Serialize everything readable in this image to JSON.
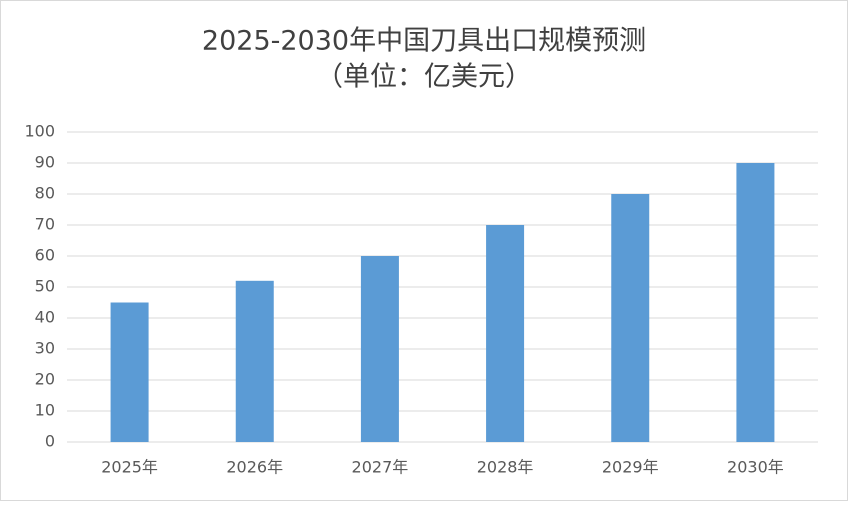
{
  "chart_data": {
    "type": "bar",
    "title": "2025-2030年中国刀具出口规模预测",
    "subtitle": "（单位：亿美元）",
    "categories": [
      "2025年",
      "2026年",
      "2027年",
      "2028年",
      "2029年",
      "2030年"
    ],
    "values": [
      45,
      52,
      60,
      70,
      80,
      90
    ],
    "color": "#5b9bd5",
    "ylim": [
      0,
      100
    ],
    "yticks": [
      0,
      10,
      20,
      30,
      40,
      50,
      60,
      70,
      80,
      90,
      100
    ],
    "grid": true
  }
}
